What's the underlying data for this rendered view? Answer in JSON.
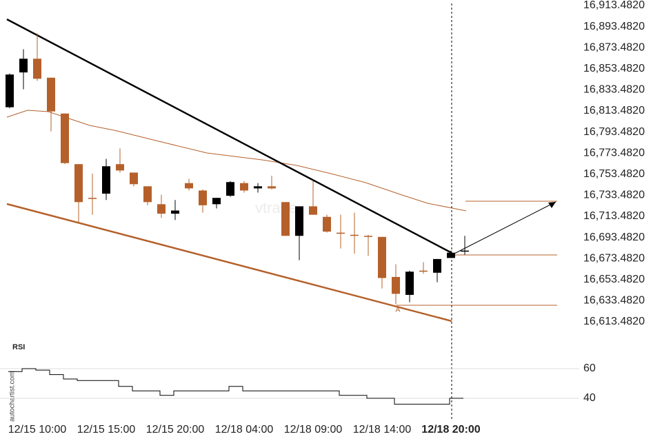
{
  "chart_data": [
    {
      "type": "candlestick",
      "categories": [
        null,
        null,
        "12/15 10:00",
        null,
        null,
        null,
        null,
        "12/15 15:00",
        null,
        null,
        null,
        null,
        "12/15 20:00",
        null,
        null,
        null,
        null,
        "12/18 04:00",
        null,
        null,
        null,
        null,
        "12/18 09:00",
        null,
        null,
        null,
        null,
        "12/18 14:00",
        null,
        null,
        null,
        null,
        "12/18 20:00",
        null
      ],
      "open": [
        16817,
        16850,
        16863,
        16845,
        16811,
        16763,
        16731,
        16735,
        16763,
        16755,
        16742,
        16725,
        16716,
        16745,
        16738,
        16725,
        16733,
        16745,
        16740,
        16742,
        16727,
        16695,
        16723,
        16713,
        16698,
        16696,
        16695,
        16694,
        16656,
        16639,
        16662,
        16660,
        16674,
        16680
      ],
      "close": [
        16848,
        16863,
        16844,
        16813,
        16764,
        16727,
        16730,
        16761,
        16757,
        16744,
        16727,
        16716,
        16719,
        16740,
        16724,
        16731,
        16746,
        16738,
        16742,
        16740,
        16695,
        16723,
        16715,
        16699,
        16697,
        16695,
        16694,
        16655,
        16640,
        16661,
        16661,
        16673,
        16679,
        16681
      ],
      "high": [
        16849,
        16872,
        16887,
        16845,
        16811,
        16763,
        16754,
        16768,
        16778,
        16755,
        16742,
        16734,
        16729,
        16749,
        16739,
        16731,
        16747,
        16747,
        16745,
        16752,
        16727,
        16723,
        16747,
        16715,
        16715,
        16717,
        16696,
        16694,
        16668,
        16662,
        16670,
        16673,
        16681,
        16695
      ],
      "low": [
        16816,
        16834,
        16842,
        16794,
        16763,
        16708,
        16715,
        16729,
        16755,
        16742,
        16724,
        16712,
        16710,
        16738,
        16717,
        16721,
        16732,
        16736,
        16736,
        16739,
        16695,
        16672,
        16715,
        16698,
        16683,
        16678,
        16676,
        16645,
        16630,
        16632,
        16659,
        16651,
        16674,
        16677
      ],
      "up_color": "#000000",
      "down_color": "#b5602a",
      "ylim": [
        16600,
        16918.7
      ],
      "yticks": [
        {
          "value": 16913.482,
          "label": "16,913.4820"
        },
        {
          "value": 16893.482,
          "label": "16,893.4820"
        },
        {
          "value": 16873.482,
          "label": "16,873.4820"
        },
        {
          "value": 16853.482,
          "label": "16,853.4820"
        },
        {
          "value": 16833.482,
          "label": "16,833.4820"
        },
        {
          "value": 16813.482,
          "label": "16,813.4820"
        },
        {
          "value": 16793.482,
          "label": "16,793.4820"
        },
        {
          "value": 16773.482,
          "label": "16,773.4820"
        },
        {
          "value": 16753.482,
          "label": "16,753.4820"
        },
        {
          "value": 16733.482,
          "label": "16,733.4820"
        },
        {
          "value": 16713.482,
          "label": "16,713.4820"
        },
        {
          "value": 16693.482,
          "label": "16,693.4820"
        },
        {
          "value": 16673.482,
          "label": "16,673.4820"
        },
        {
          "value": 16653.482,
          "label": "16,653.4820"
        },
        {
          "value": 16633.482,
          "label": "16,633.4820"
        },
        {
          "value": 16613.482,
          "label": "16,613.4820"
        }
      ],
      "annotation": "A",
      "watermark": "autochartist.com"
    },
    {
      "type": "line",
      "title": "RSI",
      "series": [
        {
          "color": "#000000",
          "values": [
            58,
            60,
            59,
            56,
            53,
            52,
            52,
            52,
            48,
            45,
            45,
            42,
            45,
            45,
            45,
            45,
            48,
            45,
            45,
            45,
            45,
            45,
            45,
            45,
            42,
            42,
            40,
            40,
            36,
            36,
            36,
            36,
            40,
            40
          ]
        }
      ],
      "ylim": [
        30,
        70
      ],
      "yticks": [
        60,
        40
      ],
      "grid": true
    }
  ]
}
